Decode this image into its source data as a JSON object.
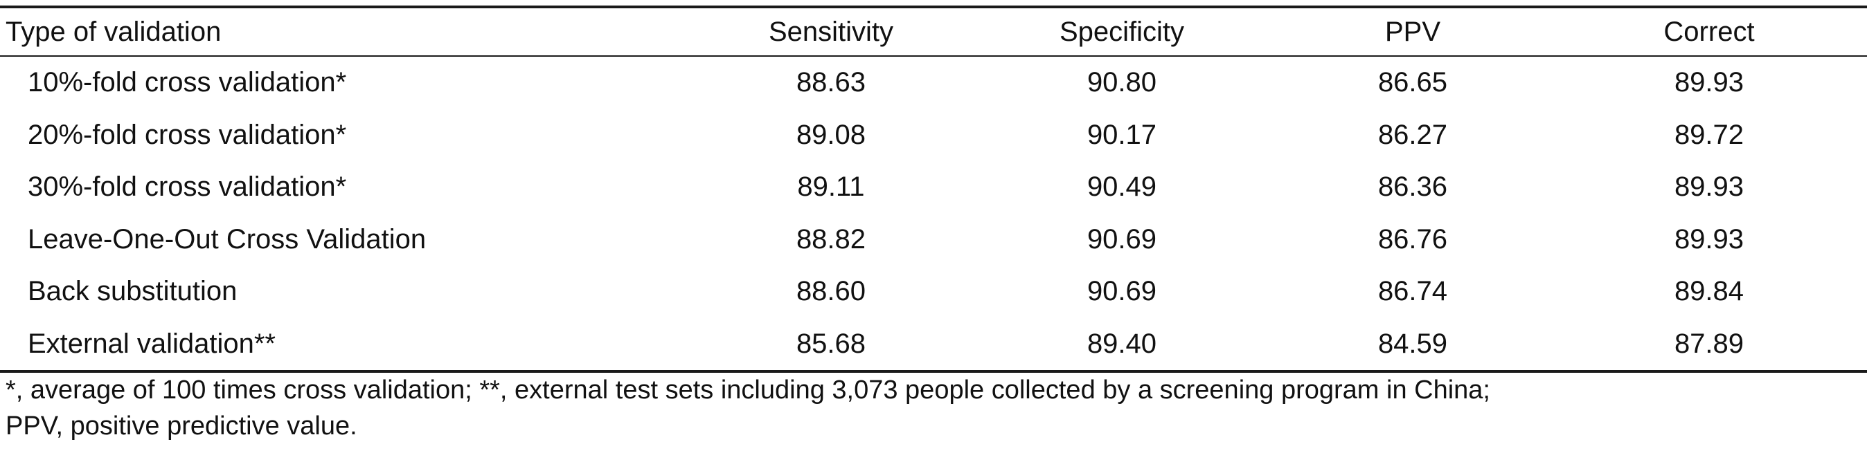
{
  "table": {
    "headers": [
      "Type of validation",
      "Sensitivity",
      "Specificity",
      "PPV",
      "Correct"
    ],
    "rows": [
      [
        "10%-fold cross validation*",
        "88.63",
        "90.80",
        "86.65",
        "89.93"
      ],
      [
        "20%-fold cross validation*",
        "89.08",
        "90.17",
        "86.27",
        "89.72"
      ],
      [
        "30%-fold cross validation*",
        "89.11",
        "90.49",
        "86.36",
        "89.93"
      ],
      [
        "Leave-One-Out Cross Validation",
        "88.82",
        "90.69",
        "86.76",
        "89.93"
      ],
      [
        "Back substitution",
        "88.60",
        "90.69",
        "86.74",
        "89.84"
      ],
      [
        "External validation**",
        "85.68",
        "89.40",
        "84.59",
        "87.89"
      ]
    ]
  },
  "footnote": {
    "line1": "*, average of 100 times cross validation; **, external test sets including 3,073 people collected by a screening program in China;",
    "line2": "PPV, positive predictive value."
  }
}
